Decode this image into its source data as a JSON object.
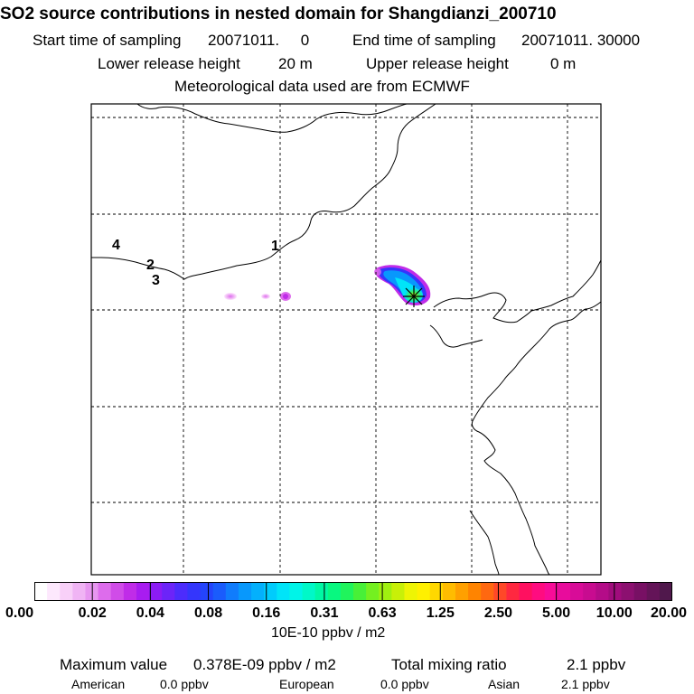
{
  "header": {
    "title": "SO2 source contributions in nested domain for Shangdianzi_200710",
    "start_label": "Start time of sampling",
    "start_value": "20071011.     0",
    "end_label": "End time of sampling",
    "end_value": "20071011. 30000",
    "lower_label": "Lower release height",
    "lower_value": "20 m",
    "upper_label": "Upper release height",
    "upper_value": "0 m",
    "met_text": "Meteorological data used are from ECMWF"
  },
  "map": {
    "trajectory_labels": [
      "1",
      "2",
      "3",
      "4"
    ],
    "receptor_marker": "Shangdianzi receptor"
  },
  "colorbar": {
    "colors": [
      "#ffffff",
      "#fde8fd",
      "#f8d0f8",
      "#f0b4f4",
      "#e796f0",
      "#dd6cec",
      "#d04ce8",
      "#c02ce8",
      "#a81cf0",
      "#8c1cf4",
      "#6c24f8",
      "#4c2cfc",
      "#3436fc",
      "#2444fc",
      "#1a5cfc",
      "#107cfc",
      "#0898fc",
      "#04b0fc",
      "#00ccfc",
      "#00e4f8",
      "#00f4e8",
      "#00f8c8",
      "#00f8a4",
      "#08f880",
      "#20f45c",
      "#48f038",
      "#74f020",
      "#a0f010",
      "#c8f008",
      "#eef404",
      "#fff000",
      "#ffd800",
      "#ffbc00",
      "#ffa000",
      "#ff8400",
      "#ff6810",
      "#ff4828",
      "#ff2840",
      "#ff1060",
      "#ff0c80",
      "#f80c98",
      "#e80c9c",
      "#d80c98",
      "#c80c90",
      "#b40c88",
      "#a00c7c",
      "#8c1070",
      "#781064",
      "#641458",
      "#50184c"
    ],
    "tick_labels": [
      "0.00",
      "0.02",
      "0.04",
      "0.08",
      "0.16",
      "0.31",
      "0.63",
      "1.25",
      "2.50",
      "5.00",
      "10.00",
      "20.00"
    ],
    "units": "10E-10 ppbv / m2"
  },
  "summary": {
    "max_label": "Maximum value",
    "max_value": "0.378E-09 ppbv / m2",
    "total_label": "Total mixing ratio",
    "total_value": "2.1 ppbv",
    "regions": [
      {
        "name": "American",
        "value": "0.0 ppbv"
      },
      {
        "name": "European",
        "value": "0.0 ppbv"
      },
      {
        "name": "Asian",
        "value": "2.1 ppbv"
      }
    ]
  }
}
